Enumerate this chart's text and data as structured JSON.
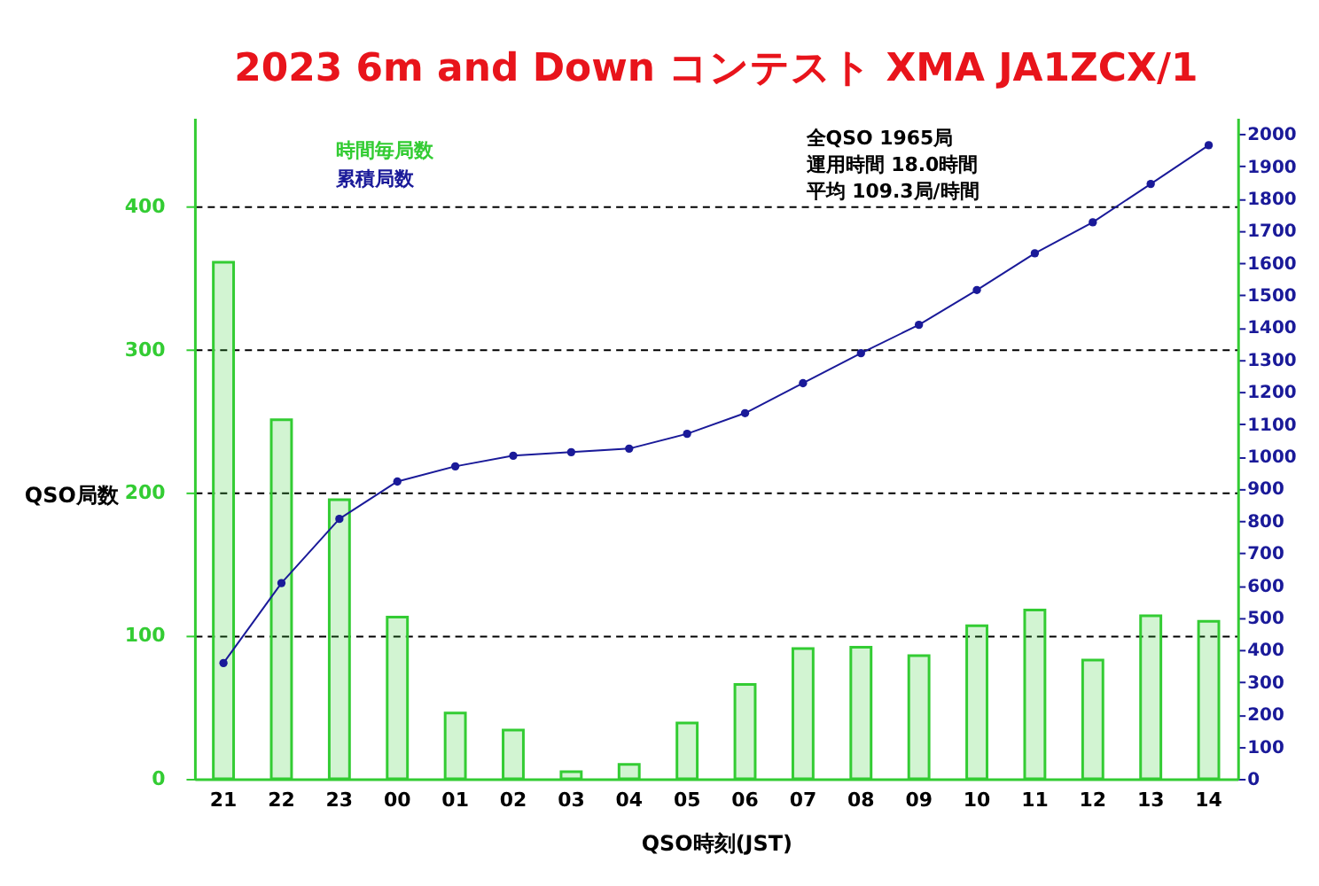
{
  "chart_data": {
    "type": "bar",
    "title": "2023 6m and Down コンテスト XMA JA1ZCX/1",
    "xlabel": "QSO時刻(JST)",
    "ylabel": "QSO局数",
    "categories": [
      "21",
      "22",
      "23",
      "00",
      "01",
      "02",
      "03",
      "04",
      "05",
      "06",
      "07",
      "08",
      "09",
      "10",
      "11",
      "12",
      "13",
      "14"
    ],
    "series": [
      {
        "name": "時間毎局数",
        "color": "#33cc33",
        "values": [
          361,
          251,
          195,
          113,
          46,
          34,
          5,
          10,
          39,
          66,
          91,
          92,
          86,
          107,
          118,
          83,
          114,
          110
        ]
      },
      {
        "name": "累積局数",
        "type": "line",
        "axis": "y2",
        "color": "#1a1a99",
        "values": [
          359,
          607,
          806,
          922,
          969,
          1002,
          1013,
          1024,
          1070,
          1134,
          1227,
          1320,
          1408,
          1516,
          1630,
          1726,
          1845,
          1965
        ]
      }
    ],
    "ylim": [
      0,
      462
    ],
    "yticks": [
      0,
      100,
      200,
      300,
      400
    ],
    "y2lim": [
      0,
      2050
    ],
    "y2ticks": [
      0,
      100,
      200,
      300,
      400,
      500,
      600,
      700,
      800,
      900,
      1000,
      1100,
      1200,
      1300,
      1400,
      1500,
      1600,
      1700,
      1800,
      1900,
      2000
    ],
    "grid": "y",
    "legend": "top left",
    "marker": "circle",
    "annotations": [
      "全QSO 1965局",
      "運用時間 18.0時間",
      "平均 109.3局/時間"
    ]
  }
}
